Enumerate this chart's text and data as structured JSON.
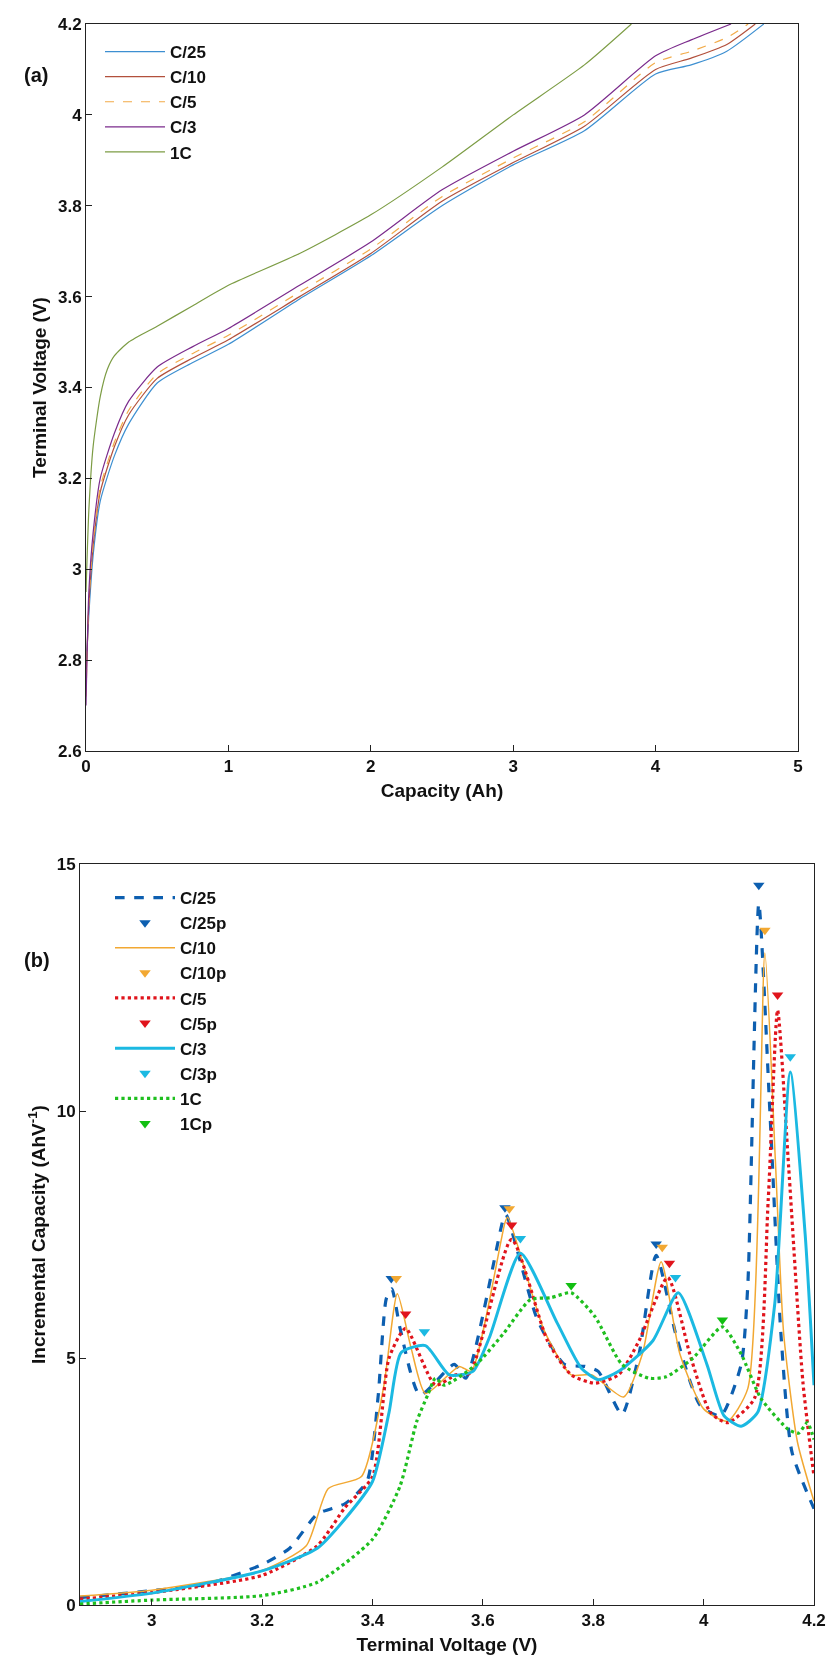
{
  "chart_data": [
    {
      "type": "line",
      "xlabel": "Capacity (Ah)",
      "ylabel": "Terminal Voltage (V)",
      "annotations": [
        "(a)"
      ],
      "xlim": [
        0,
        5
      ],
      "ylim": [
        2.6,
        4.2
      ],
      "xticks": [
        0,
        1,
        2,
        3,
        4,
        5
      ],
      "yticks": [
        2.6,
        2.8,
        3,
        3.2,
        3.4,
        3.6,
        3.8,
        4,
        4.2
      ],
      "legend": "top left",
      "series": [
        {
          "name": "C/25",
          "color": "#3d8fd1",
          "line_style": "solid",
          "x": [
            0,
            0.02,
            0.05,
            0.1,
            0.2,
            0.3,
            0.5,
            0.75,
            1,
            1.5,
            2,
            2.5,
            3,
            3.5,
            4,
            4.25,
            4.5,
            4.76
          ],
          "values": [
            2.78,
            2.9,
            3.03,
            3.15,
            3.25,
            3.32,
            3.41,
            3.455,
            3.495,
            3.595,
            3.69,
            3.8,
            3.89,
            3.965,
            4.09,
            4.11,
            4.14,
            4.2
          ]
        },
        {
          "name": "C/10",
          "color": "#b2503c",
          "line_style": "solid",
          "x": [
            0,
            0.02,
            0.05,
            0.1,
            0.2,
            0.3,
            0.5,
            0.75,
            1,
            1.5,
            2,
            2.5,
            3,
            3.5,
            4,
            4.25,
            4.5,
            4.7
          ],
          "values": [
            2.75,
            2.92,
            3.05,
            3.17,
            3.27,
            3.34,
            3.42,
            3.465,
            3.505,
            3.6,
            3.695,
            3.81,
            3.895,
            3.975,
            4.1,
            4.125,
            4.155,
            4.2
          ]
        },
        {
          "name": "C/5",
          "color": "#f2ab48",
          "line_style": "dashed",
          "x": [
            0,
            0.02,
            0.05,
            0.1,
            0.2,
            0.3,
            0.5,
            0.75,
            1,
            1.5,
            2,
            2.5,
            3,
            3.5,
            4,
            4.25,
            4.5,
            4.65
          ],
          "values": [
            2.72,
            2.93,
            3.06,
            3.18,
            3.28,
            3.35,
            3.43,
            3.475,
            3.515,
            3.61,
            3.705,
            3.82,
            3.905,
            3.985,
            4.115,
            4.14,
            4.17,
            4.2
          ]
        },
        {
          "name": "C/3",
          "color": "#7b2b8c",
          "line_style": "solid",
          "x": [
            0,
            0.02,
            0.05,
            0.1,
            0.2,
            0.3,
            0.5,
            0.75,
            1,
            1.5,
            2,
            2.5,
            3,
            3.5,
            4,
            4.25,
            4.53
          ],
          "values": [
            2.7,
            2.95,
            3.08,
            3.2,
            3.3,
            3.37,
            3.445,
            3.49,
            3.53,
            3.625,
            3.72,
            3.835,
            3.92,
            4.0,
            4.13,
            4.165,
            4.2
          ]
        },
        {
          "name": "1C",
          "color": "#7c9c44",
          "line_style": "solid",
          "x": [
            0,
            0.02,
            0.05,
            0.1,
            0.15,
            0.2,
            0.3,
            0.5,
            0.75,
            1,
            1.5,
            2,
            2.5,
            3,
            3.5,
            3.83
          ],
          "values": [
            2.95,
            3.13,
            3.27,
            3.38,
            3.44,
            3.47,
            3.5,
            3.535,
            3.58,
            3.625,
            3.695,
            3.78,
            3.885,
            4.0,
            4.11,
            4.2
          ]
        }
      ]
    },
    {
      "type": "line",
      "xlabel": "Terminal Voltage (V)",
      "ylabel": "Incremental Capacity (AhV$^{-1}$)",
      "annotations": [
        "(b)"
      ],
      "xlim": [
        2.87,
        4.2
      ],
      "ylim": [
        0,
        15
      ],
      "xticks": [
        3,
        3.2,
        3.4,
        3.6,
        3.8,
        4,
        4.2
      ],
      "yticks": [
        0,
        5,
        10,
        15
      ],
      "legend": "top left",
      "series": [
        {
          "name": "C/25",
          "color": "#0d5fb0",
          "line_style": "dashed",
          "x": [
            2.87,
            3.0,
            3.1,
            3.2,
            3.25,
            3.3,
            3.35,
            3.39,
            3.41,
            3.425,
            3.435,
            3.45,
            3.486,
            3.548,
            3.569,
            3.637,
            3.642,
            3.699,
            3.748,
            3.785,
            3.809,
            3.852,
            3.883,
            3.914,
            3.951,
            3.994,
            4.031,
            4.068,
            4.08,
            4.1,
            4.12,
            4.14,
            4.16,
            4.2
          ],
          "values": [
            0.15,
            0.29,
            0.42,
            0.82,
            1.15,
            1.84,
            2.05,
            2.5,
            4.2,
            6.2,
            6.4,
            5.6,
            4.25,
            4.87,
            4.59,
            7.81,
            7.9,
            5.77,
            4.87,
            4.83,
            4.73,
            3.86,
            5.08,
            7.08,
            5.42,
            4.04,
            3.83,
            4.87,
            6.46,
            14.2,
            10,
            5.5,
            3.1,
            1.95
          ]
        },
        {
          "name": "C/25p",
          "type": "scatter",
          "marker": "triangle",
          "color": "#0d5fb0",
          "x": [
            3.434,
            3.64,
            3.914,
            4.1
          ],
          "values": [
            6.61,
            8.04,
            7.31,
            14.57
          ]
        },
        {
          "name": "C/10",
          "color": "#f2a832",
          "line_style": "solid",
          "x": [
            2.87,
            3.0,
            3.2,
            3.28,
            3.32,
            3.38,
            3.42,
            3.445,
            3.47,
            3.496,
            3.557,
            3.579,
            3.64,
            3.645,
            3.711,
            3.76,
            3.797,
            3.855,
            3.889,
            3.923,
            3.957,
            4.0,
            4.043,
            4.08,
            4.111,
            4.13,
            4.145,
            4.17,
            4.2
          ],
          "values": [
            0.18,
            0.3,
            0.7,
            1.2,
            2.36,
            2.6,
            4.4,
            6.3,
            5.2,
            4.28,
            4.83,
            4.73,
            7.74,
            7.85,
            5.56,
            4.66,
            4.66,
            4.21,
            5.08,
            6.95,
            5.08,
            3.97,
            3.72,
            4.38,
            13.2,
            9,
            5.5,
            3.3,
            2.1
          ]
        },
        {
          "name": "C/10p",
          "type": "scatter",
          "marker": "triangle",
          "color": "#f2a832",
          "x": [
            3.443,
            3.648,
            3.925,
            4.111
          ],
          "values": [
            6.61,
            8.02,
            7.24,
            13.66
          ]
        },
        {
          "name": "C/5",
          "color": "#e0141c",
          "line_style": "dotted",
          "x": [
            2.87,
            3.0,
            3.2,
            3.3,
            3.35,
            3.4,
            3.43,
            3.46,
            3.514,
            3.551,
            3.576,
            3.652,
            3.717,
            3.76,
            3.803,
            3.846,
            3.883,
            3.935,
            3.975,
            4.012,
            4.043,
            4.092,
            4.117,
            4.134,
            4.154,
            4.18,
            4.2
          ],
          "values": [
            0.12,
            0.25,
            0.6,
            1.2,
            1.97,
            2.6,
            5.0,
            5.6,
            4.45,
            4.66,
            4.69,
            7.4,
            5.35,
            4.66,
            4.49,
            4.66,
            5.35,
            6.63,
            5.08,
            3.9,
            3.69,
            4.18,
            8.19,
            12.04,
            8.88,
            4.5,
            2.6
          ]
        },
        {
          "name": "C/5p",
          "type": "scatter",
          "marker": "triangle",
          "color": "#e0141c",
          "x": [
            3.46,
            3.652,
            3.938,
            4.134
          ],
          "values": [
            5.89,
            7.69,
            6.92,
            12.35
          ]
        },
        {
          "name": "C/3",
          "color": "#1bb9e2",
          "line_style": "solid",
          "x": [
            2.87,
            3.0,
            3.2,
            3.3,
            3.35,
            3.4,
            3.43,
            3.452,
            3.496,
            3.539,
            3.582,
            3.612,
            3.668,
            3.735,
            3.778,
            3.809,
            3.846,
            3.908,
            3.954,
            4.006,
            4.037,
            4.068,
            4.098,
            4.129,
            4.157,
            4.184,
            4.2
          ],
          "values": [
            0.07,
            0.24,
            0.69,
            1.15,
            1.74,
            2.5,
            3.9,
            5.11,
            5.25,
            4.66,
            4.73,
            5.42,
            7.12,
            5.7,
            4.8,
            4.56,
            4.73,
            5.35,
            6.32,
            4.87,
            3.83,
            3.62,
            3.9,
            6.11,
            10.79,
            7.5,
            4.45
          ]
        },
        {
          "name": "C/3p",
          "type": "scatter",
          "marker": "triangle",
          "color": "#1bb9e2",
          "x": [
            3.494,
            3.668,
            3.949,
            4.157
          ],
          "values": [
            5.53,
            7.42,
            6.63,
            11.1
          ]
        },
        {
          "name": "1C",
          "color": "#1fbf1f",
          "line_style": "dotted",
          "x": [
            2.87,
            3.0,
            3.2,
            3.3,
            3.4,
            3.45,
            3.48,
            3.5,
            3.514,
            3.53,
            3.588,
            3.637,
            3.686,
            3.723,
            3.76,
            3.803,
            3.852,
            3.901,
            3.932,
            3.981,
            4.034,
            4.068,
            4.104,
            4.154,
            4.172,
            4.188,
            4.2
          ],
          "values": [
            0.02,
            0.1,
            0.19,
            0.46,
            1.33,
            2.41,
            3.71,
            4.25,
            4.59,
            4.45,
            4.87,
            5.49,
            6.18,
            6.22,
            6.32,
            5.84,
            4.87,
            4.59,
            4.62,
            5.0,
            5.63,
            5.08,
            4.18,
            3.55,
            3.48,
            3.69,
            3.35
          ]
        },
        {
          "name": "1Cp",
          "type": "scatter",
          "marker": "triangle",
          "color": "#12bf12",
          "x": [
            3.76,
            4.034
          ],
          "values": [
            6.47,
            5.77
          ]
        }
      ]
    }
  ]
}
